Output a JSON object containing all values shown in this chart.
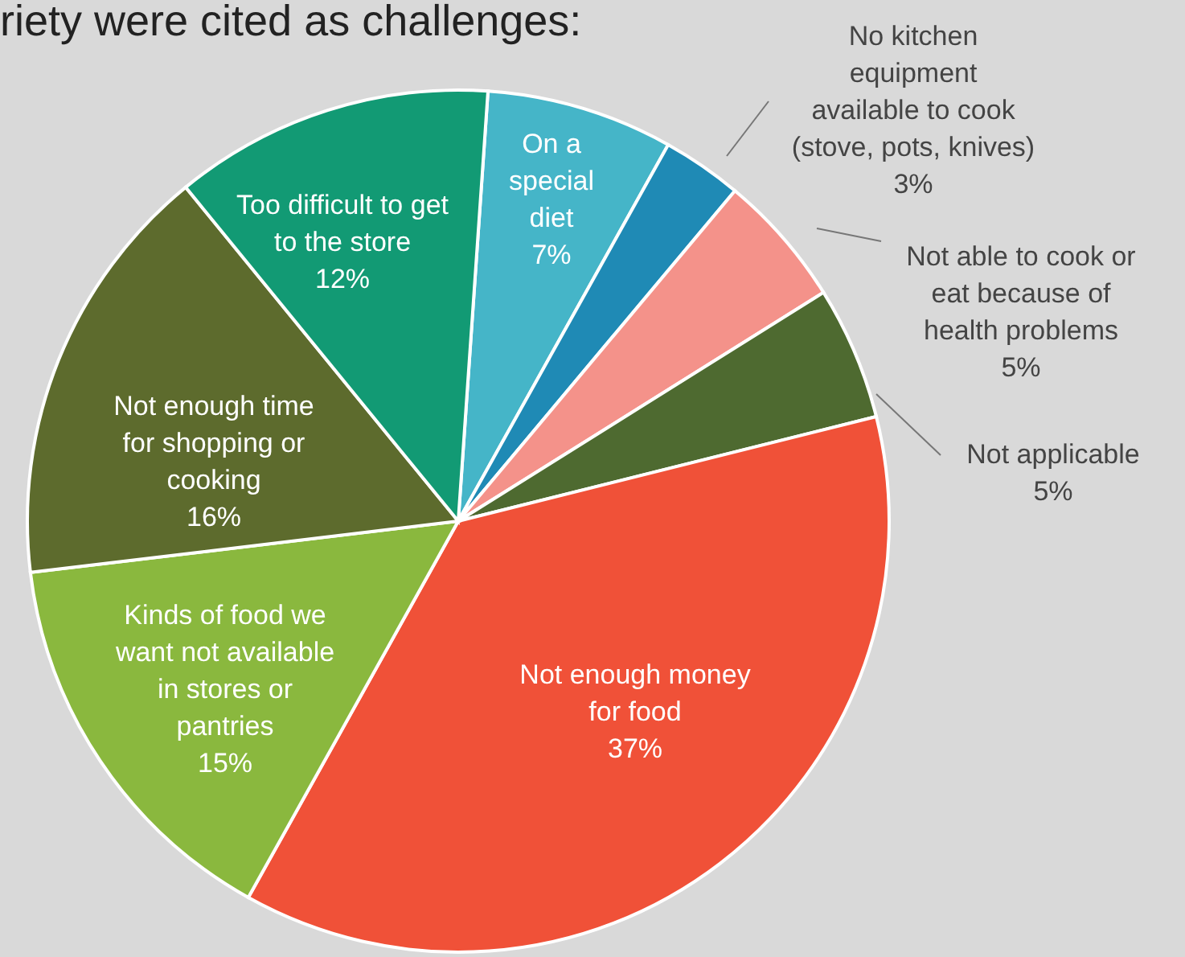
{
  "chart_data": {
    "type": "pie",
    "title": "riety were cited as challenges:",
    "categories": [
      "On a\nspecial\ndiet",
      "No kitchen\nequipment\navailable to cook\n(stove, pots, knives)",
      "Not able to cook or\neat because of\nhealth problems",
      "Not applicable",
      "Not enough money\nfor food",
      "Kinds of food we\nwant not available\nin stores or\npantries",
      "Not enough time\nfor shopping or\ncooking",
      "Too difficult to get\nto the store"
    ],
    "values": [
      7,
      3,
      5,
      5,
      37,
      15,
      16,
      12
    ],
    "value_labels": [
      "7%",
      "3%",
      "5%",
      "5%",
      "37%",
      "15%",
      "16%",
      "12%"
    ],
    "colors": [
      "#45b5c8",
      "#1f8ab5",
      "#f4928a",
      "#4e6a30",
      "#f05138",
      "#8ab83e",
      "#5d6b2d",
      "#129a74"
    ]
  }
}
